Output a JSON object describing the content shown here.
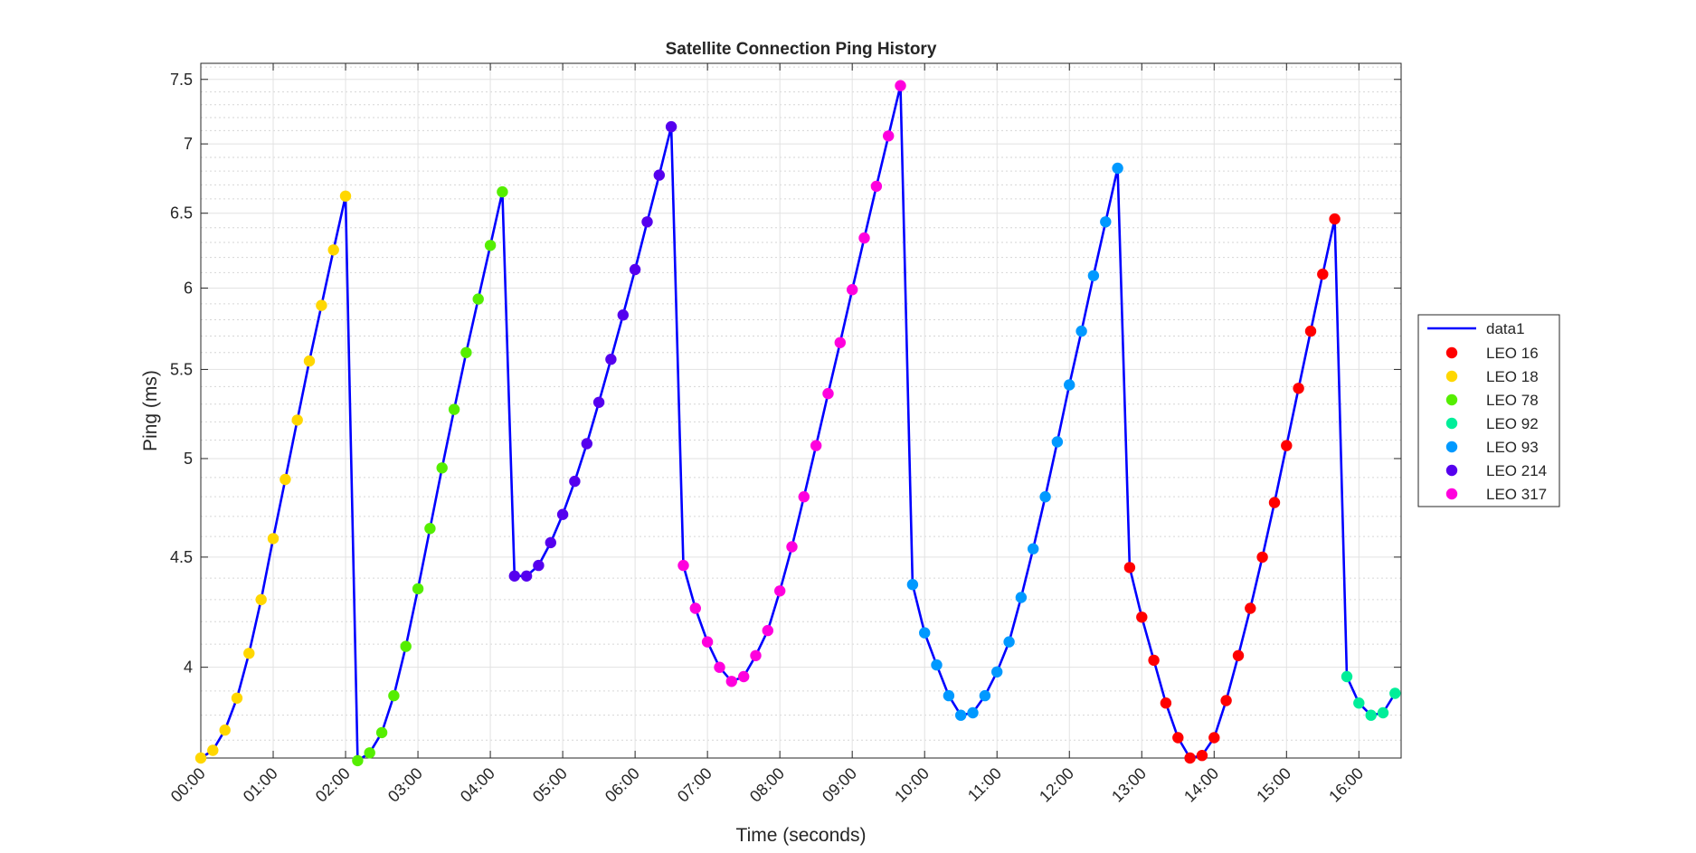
{
  "chart_data": {
    "type": "scatter",
    "title": "Satellite Connection Ping History",
    "xlabel": "Time (seconds)",
    "ylabel": "Ping (ms)",
    "y_scale": "log",
    "grid": true,
    "minor_grid": true,
    "legend_position": "outside-right",
    "xlim": [
      "00:00",
      "16:35"
    ],
    "ylim": [
      3.63,
      7.63
    ],
    "x_ticks": [
      "00:00",
      "01:00",
      "02:00",
      "03:00",
      "04:00",
      "05:00",
      "06:00",
      "07:00",
      "08:00",
      "09:00",
      "10:00",
      "11:00",
      "12:00",
      "13:00",
      "14:00",
      "15:00",
      "16:00"
    ],
    "y_ticks": [
      "4",
      "4.5",
      "5",
      "5.5",
      "6",
      "6.5",
      "7",
      "7.5"
    ],
    "line": {
      "name": "data1",
      "color": "#0000ff",
      "x": [
        "00:00",
        "00:10",
        "00:20",
        "00:30",
        "00:40",
        "00:50",
        "01:00",
        "01:10",
        "01:20",
        "01:30",
        "01:40",
        "01:50",
        "02:00",
        "02:10",
        "02:20",
        "02:30",
        "02:40",
        "02:50",
        "03:00",
        "03:10",
        "03:20",
        "03:30",
        "03:40",
        "03:50",
        "04:00",
        "04:10",
        "04:20",
        "04:30",
        "04:40",
        "04:50",
        "05:00",
        "05:10",
        "05:20",
        "05:30",
        "05:40",
        "05:50",
        "06:00",
        "06:10",
        "06:20",
        "06:30",
        "06:40",
        "06:50",
        "07:00",
        "07:10",
        "07:20",
        "07:30",
        "07:40",
        "07:50",
        "08:00",
        "08:10",
        "08:20",
        "08:30",
        "08:40",
        "08:50",
        "09:00",
        "09:10",
        "09:20",
        "09:30",
        "09:40",
        "09:50",
        "10:00",
        "10:10",
        "10:20",
        "10:30",
        "10:40",
        "10:50",
        "11:00",
        "11:10",
        "11:20",
        "11:30",
        "11:40",
        "11:50",
        "12:00",
        "12:10",
        "12:20",
        "12:30",
        "12:40",
        "12:50",
        "13:00",
        "13:10",
        "13:20",
        "13:30",
        "13:40",
        "13:50",
        "14:00",
        "14:10",
        "14:20",
        "14:30",
        "14:40",
        "14:50",
        "15:00",
        "15:10",
        "15:20",
        "15:30",
        "15:40",
        "15:50",
        "16:00",
        "16:10",
        "16:20",
        "16:30"
      ],
      "y": [
        3.63,
        3.66,
        3.74,
        3.87,
        4.06,
        4.3,
        4.59,
        4.89,
        5.21,
        5.55,
        5.89,
        6.25,
        6.62,
        3.62,
        3.65,
        3.73,
        3.88,
        4.09,
        4.35,
        4.64,
        4.95,
        5.27,
        5.6,
        5.93,
        6.28,
        6.65,
        4.41,
        4.41,
        4.46,
        4.57,
        4.71,
        4.88,
        5.08,
        5.31,
        5.56,
        5.83,
        6.12,
        6.44,
        6.77,
        7.13,
        4.46,
        4.26,
        4.11,
        4.0,
        3.94,
        3.96,
        4.05,
        4.16,
        4.34,
        4.55,
        4.8,
        5.07,
        5.36,
        5.66,
        5.99,
        6.33,
        6.69,
        7.06,
        7.45,
        4.37,
        4.15,
        4.01,
        3.88,
        3.8,
        3.81,
        3.88,
        3.98,
        4.11,
        4.31,
        4.54,
        4.8,
        5.09,
        5.41,
        5.73,
        6.08,
        6.44,
        6.82,
        4.45,
        4.22,
        4.03,
        3.85,
        3.71,
        3.63,
        3.64,
        3.71,
        3.86,
        4.05,
        4.26,
        4.5,
        4.77,
        5.07,
        5.39,
        5.73,
        6.09,
        6.46,
        3.96,
        3.85,
        3.8,
        3.81,
        3.89
      ]
    },
    "series": [
      {
        "name": "LEO 16",
        "color": "#ff0000"
      },
      {
        "name": "LEO 18",
        "color": "#ffd700"
      },
      {
        "name": "LEO 78",
        "color": "#55ee00"
      },
      {
        "name": "LEO 92",
        "color": "#00ee99"
      },
      {
        "name": "LEO 93",
        "color": "#0099ff"
      },
      {
        "name": "LEO 214",
        "color": "#5500ee"
      },
      {
        "name": "LEO 317",
        "color": "#ff00dd"
      }
    ],
    "point_series": [
      "LEO 18",
      "LEO 18",
      "LEO 18",
      "LEO 18",
      "LEO 18",
      "LEO 18",
      "LEO 18",
      "LEO 18",
      "LEO 18",
      "LEO 18",
      "LEO 18",
      "LEO 18",
      "LEO 18",
      "LEO 78",
      "LEO 78",
      "LEO 78",
      "LEO 78",
      "LEO 78",
      "LEO 78",
      "LEO 78",
      "LEO 78",
      "LEO 78",
      "LEO 78",
      "LEO 78",
      "LEO 78",
      "LEO 78",
      "LEO 214",
      "LEO 214",
      "LEO 214",
      "LEO 214",
      "LEO 214",
      "LEO 214",
      "LEO 214",
      "LEO 214",
      "LEO 214",
      "LEO 214",
      "LEO 214",
      "LEO 214",
      "LEO 214",
      "LEO 214",
      "LEO 317",
      "LEO 317",
      "LEO 317",
      "LEO 317",
      "LEO 317",
      "LEO 317",
      "LEO 317",
      "LEO 317",
      "LEO 317",
      "LEO 317",
      "LEO 317",
      "LEO 317",
      "LEO 317",
      "LEO 317",
      "LEO 317",
      "LEO 317",
      "LEO 317",
      "LEO 317",
      "LEO 317",
      "LEO 93",
      "LEO 93",
      "LEO 93",
      "LEO 93",
      "LEO 93",
      "LEO 93",
      "LEO 93",
      "LEO 93",
      "LEO 93",
      "LEO 93",
      "LEO 93",
      "LEO 93",
      "LEO 93",
      "LEO 93",
      "LEO 93",
      "LEO 93",
      "LEO 93",
      "LEO 93",
      "LEO 16",
      "LEO 16",
      "LEO 16",
      "LEO 16",
      "LEO 16",
      "LEO 16",
      "LEO 16",
      "LEO 16",
      "LEO 16",
      "LEO 16",
      "LEO 16",
      "LEO 16",
      "LEO 16",
      "LEO 16",
      "LEO 16",
      "LEO 16",
      "LEO 16",
      "LEO 16",
      "LEO 92",
      "LEO 92",
      "LEO 92",
      "LEO 92",
      "LEO 92"
    ]
  }
}
